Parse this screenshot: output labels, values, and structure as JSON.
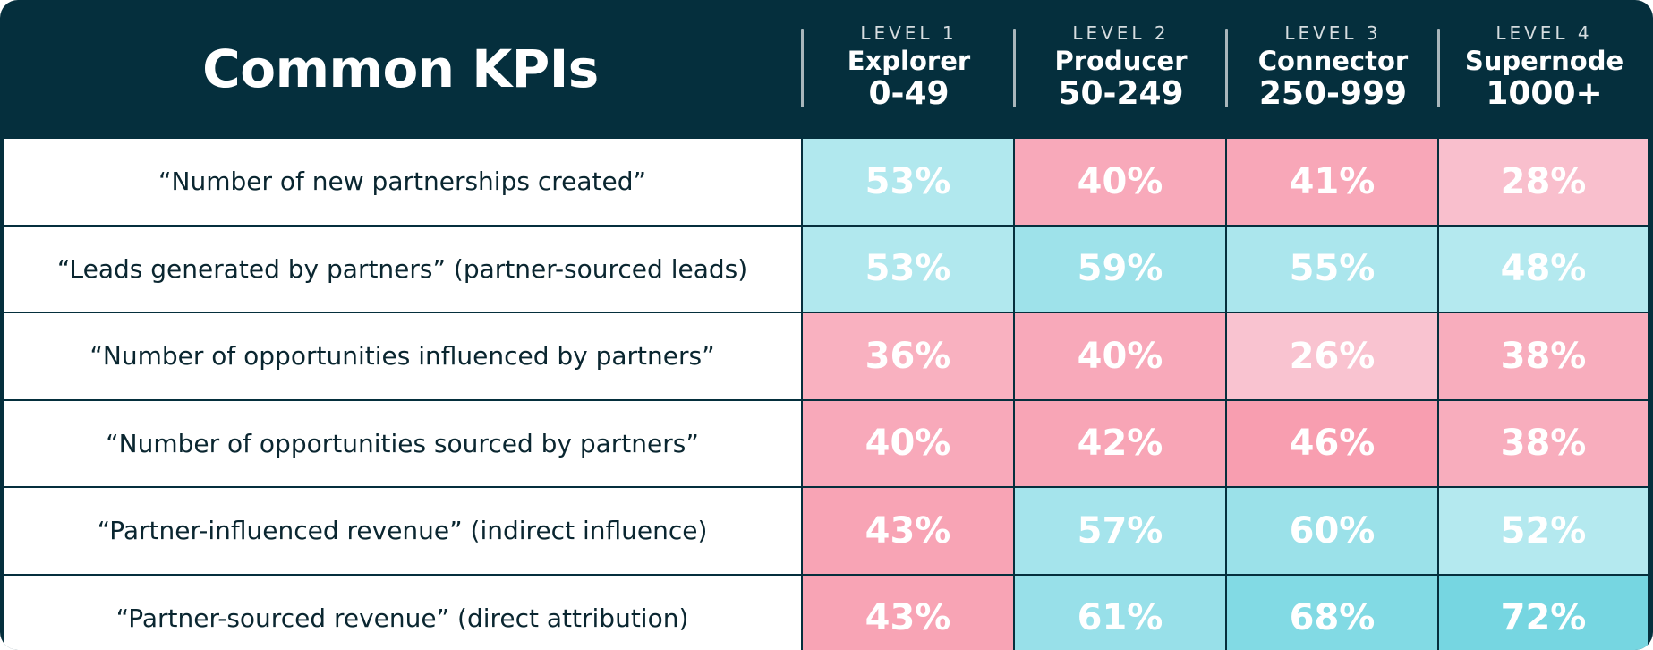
{
  "chart_data": {
    "type": "table",
    "title": "Common KPIs",
    "columns": [
      {
        "level": "LEVEL 1",
        "name": "Explorer",
        "range": "0-49"
      },
      {
        "level": "LEVEL 2",
        "name": "Producer",
        "range": "50-249"
      },
      {
        "level": "LEVEL 3",
        "name": "Connector",
        "range": "250-999"
      },
      {
        "level": "LEVEL 4",
        "name": "Supernode",
        "range": "1000+"
      }
    ],
    "rows": [
      {
        "label": "“Number of new partnerships created”",
        "values": [
          53,
          40,
          41,
          28
        ]
      },
      {
        "label": "“Leads generated by partners” (partner-sourced leads)",
        "values": [
          53,
          59,
          55,
          48
        ]
      },
      {
        "label": "“Number of opportunities influenced by partners”",
        "values": [
          36,
          40,
          26,
          38
        ]
      },
      {
        "label": "“Number of opportunities sourced by partners”",
        "values": [
          40,
          42,
          46,
          38
        ]
      },
      {
        "label": "“Partner-influenced revenue” (indirect influence)",
        "values": [
          43,
          57,
          60,
          52
        ]
      },
      {
        "label": "“Partner-sourced revenue” (direct attribution)",
        "values": [
          43,
          61,
          68,
          72
        ]
      }
    ],
    "value_suffix": "%",
    "colors": {
      "header_bg": "#052f3d",
      "grid_line": "#052f3d",
      "label_bg": "#ffffff",
      "label_text": "#0a2630",
      "value_text": "#ffffff",
      "high_scale": [
        "#b4e9ef",
        "#76d6e1"
      ],
      "low_scale": [
        "#f9c3d0",
        "#f89eb0"
      ]
    }
  }
}
